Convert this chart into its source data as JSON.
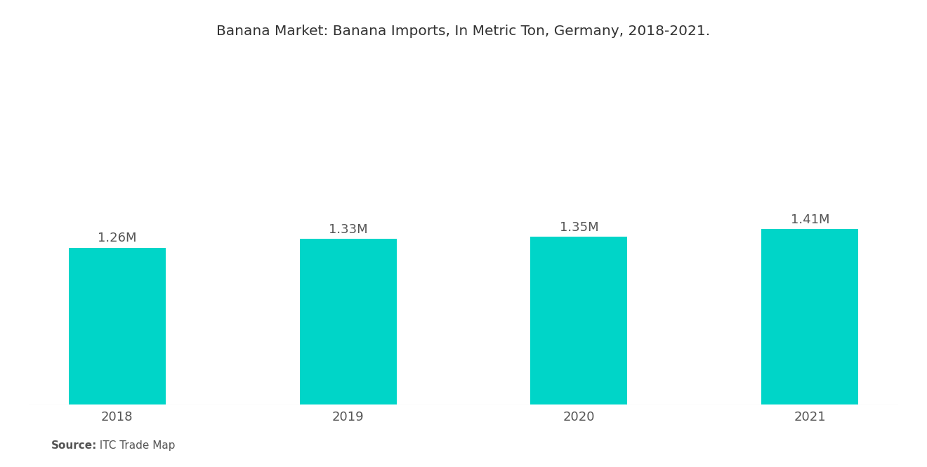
{
  "title": "Banana Market: Banana Imports, In Metric Ton, Germany, 2018-2021.",
  "categories": [
    "2018",
    "2019",
    "2020",
    "2021"
  ],
  "values": [
    1260000,
    1330000,
    1350000,
    1410000
  ],
  "labels": [
    "1.26M",
    "1.33M",
    "1.35M",
    "1.41M"
  ],
  "bar_color": "#00D5C8",
  "background_color": "#FFFFFF",
  "title_fontsize": 14.5,
  "label_fontsize": 13,
  "tick_fontsize": 13,
  "source_bold": "Source:",
  "source_normal": "  ITC Trade Map",
  "source_fontsize": 11,
  "ylim": [
    0,
    2800000
  ],
  "bar_width": 0.42
}
